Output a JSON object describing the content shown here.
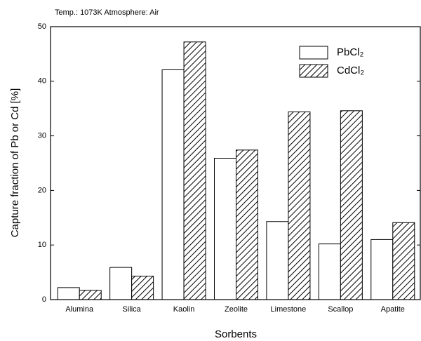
{
  "chart_data": {
    "type": "bar",
    "title": "Temp.: 1073K   Atmosphere: Air",
    "x_label": "Sorbents",
    "y_label": "Capture fraction of Pb or Cd  [%]",
    "categories": [
      "Alumina",
      "Silica",
      "Kaolin",
      "Zeolite",
      "Limestone",
      "Scallop",
      "Apatite"
    ],
    "series": [
      {
        "name": "PbCl₂",
        "color": "#ffffff",
        "hatch": false,
        "values": [
          2.2,
          5.9,
          42.1,
          25.9,
          14.3,
          10.2,
          11.0
        ]
      },
      {
        "name": "CdCl₂",
        "color": "#ffffff",
        "hatch": true,
        "values": [
          1.7,
          4.3,
          47.2,
          27.4,
          34.4,
          34.6,
          14.1
        ]
      }
    ],
    "ylim": [
      0,
      50
    ],
    "yticks": [
      0,
      10,
      20,
      30,
      40,
      50
    ],
    "legend": "upper right"
  }
}
